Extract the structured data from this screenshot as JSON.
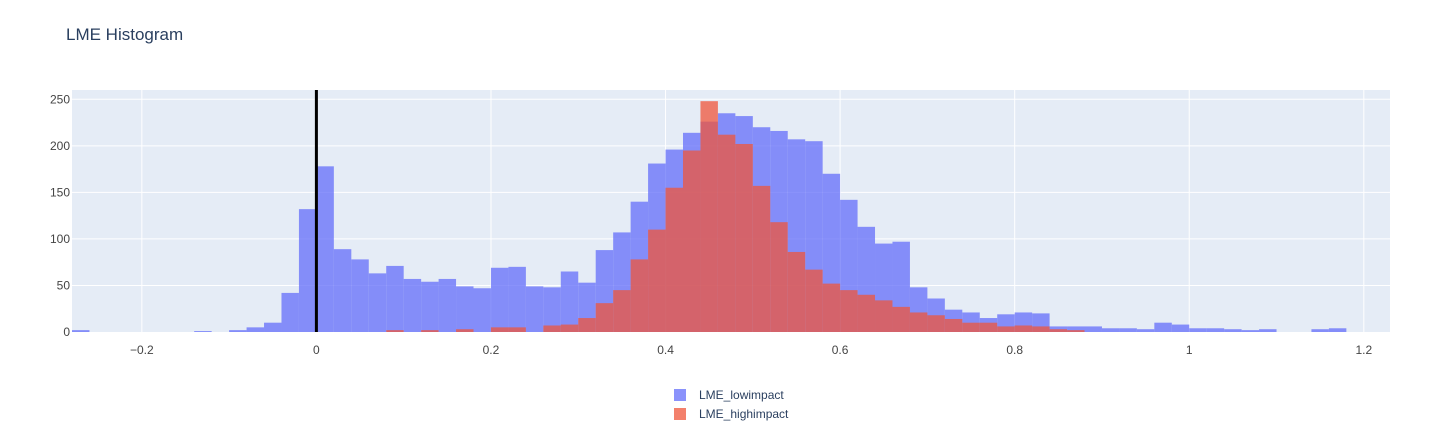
{
  "chart_data": {
    "type": "histogram",
    "title": "LME Histogram",
    "xlabel": "",
    "ylabel": "",
    "xlim": [
      -0.28,
      1.23
    ],
    "ylim": [
      0,
      260
    ],
    "grid": true,
    "bin_start": -0.28,
    "bin_width": 0.02,
    "x_ticks": [
      -0.2,
      0,
      0.2,
      0.4,
      0.6,
      0.8,
      1,
      1.2
    ],
    "x_tick_labels": [
      "−0.2",
      "0",
      "0.2",
      "0.4",
      "0.6",
      "0.8",
      "1",
      "1.2"
    ],
    "y_ticks": [
      0,
      50,
      100,
      150,
      200,
      250
    ],
    "y_tick_labels": [
      "0",
      "50",
      "100",
      "150",
      "200",
      "250"
    ],
    "vertical_line": {
      "x": 0,
      "color": "#000000"
    },
    "legend_position": "bottom-center",
    "colors": {
      "LME_lowimpact": "#636efa",
      "LME_highimpact": "#ef553b",
      "plot_bg": "#e5ecf6",
      "grid": "#ffffff"
    },
    "series": [
      {
        "name": "LME_lowimpact",
        "values": [
          2,
          0,
          0,
          0,
          0,
          0,
          0,
          1,
          0,
          2,
          5,
          10,
          42,
          132,
          178,
          89,
          78,
          63,
          71,
          57,
          54,
          57,
          49,
          47,
          69,
          70,
          49,
          48,
          65,
          53,
          88,
          107,
          140,
          181,
          196,
          214,
          226,
          235,
          232,
          220,
          216,
          207,
          205,
          170,
          142,
          113,
          95,
          97,
          48,
          36,
          24,
          21,
          15,
          19,
          21,
          20,
          6,
          6,
          6,
          4,
          4,
          3,
          10,
          8,
          4,
          4,
          3,
          2,
          3,
          0,
          0,
          3,
          4,
          0,
          0
        ]
      },
      {
        "name": "LME_highimpact",
        "values": [
          0,
          0,
          0,
          0,
          0,
          0,
          0,
          0,
          0,
          0,
          0,
          0,
          0,
          0,
          0,
          0,
          0,
          0,
          2,
          0,
          2,
          0,
          3,
          0,
          5,
          5,
          0,
          7,
          8,
          15,
          31,
          45,
          78,
          110,
          155,
          195,
          248,
          212,
          202,
          157,
          118,
          86,
          67,
          52,
          45,
          40,
          34,
          27,
          21,
          18,
          14,
          10,
          10,
          6,
          7,
          6,
          3,
          2,
          0,
          0,
          0,
          0,
          0,
          0,
          0,
          0,
          0,
          0,
          0,
          0,
          0,
          0,
          0,
          0,
          0
        ]
      }
    ]
  }
}
